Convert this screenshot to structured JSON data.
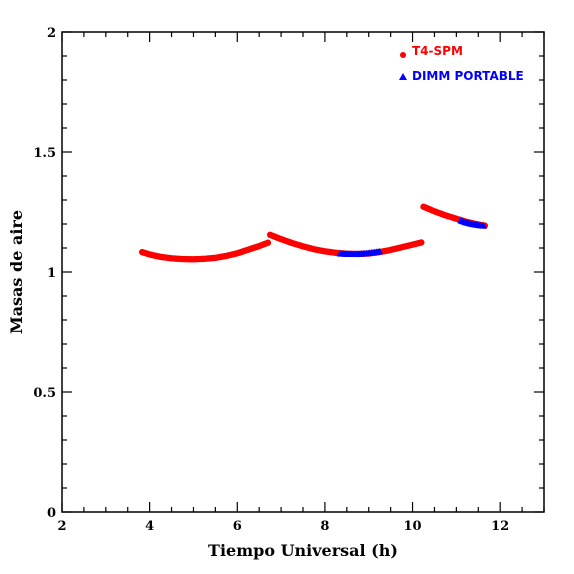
{
  "chart_data": {
    "type": "scatter",
    "xlabel": "Tiempo Universal (h)",
    "ylabel": "Masas de aire",
    "xlim": [
      2,
      13
    ],
    "ylim": [
      0,
      2
    ],
    "xticks": [
      2,
      4,
      6,
      8,
      10,
      12
    ],
    "xtick_labels": [
      "2",
      "4",
      "6",
      "8",
      "10",
      "12"
    ],
    "yticks": [
      0,
      0.5,
      1,
      1.5,
      2
    ],
    "ytick_labels": [
      "0",
      "0.5",
      "1",
      "1.5",
      "2"
    ],
    "grid": false,
    "legend_position": "top-right",
    "series": [
      {
        "name": "T4-SPM",
        "color": "#ff0000",
        "marker": "circle",
        "segments": [
          {
            "x": [
              3.83,
              4.0,
              4.25,
              4.5,
              4.75,
              5.0,
              5.25,
              5.5,
              5.75,
              6.0,
              6.25,
              6.5,
              6.7
            ],
            "y": [
              1.083,
              1.073,
              1.063,
              1.057,
              1.054,
              1.053,
              1.055,
              1.059,
              1.067,
              1.078,
              1.093,
              1.108,
              1.122
            ]
          },
          {
            "x": [
              6.75,
              7.0,
              7.25,
              7.5,
              7.75,
              8.0,
              8.25,
              8.5,
              8.75,
              9.0,
              9.25,
              9.5,
              9.75,
              10.0,
              10.2
            ],
            "y": [
              1.155,
              1.137,
              1.121,
              1.107,
              1.095,
              1.086,
              1.08,
              1.076,
              1.075,
              1.077,
              1.083,
              1.092,
              1.103,
              1.114,
              1.123
            ]
          },
          {
            "x": [
              10.25,
              10.5,
              10.75,
              11.0,
              11.25,
              11.5,
              11.65
            ],
            "y": [
              1.272,
              1.253,
              1.236,
              1.222,
              1.208,
              1.198,
              1.193
            ]
          }
        ]
      },
      {
        "name": "DIMM PORTABLE",
        "color": "#0000ff",
        "marker": "triangle",
        "segments": [
          {
            "x": [
              8.35,
              8.5,
              8.65,
              8.8,
              8.95,
              9.1,
              9.25
            ],
            "y": [
              1.077,
              1.076,
              1.075,
              1.076,
              1.078,
              1.082,
              1.086
            ]
          },
          {
            "x": [
              11.1,
              11.2,
              11.3,
              11.4,
              11.5,
              11.62
            ],
            "y": [
              1.215,
              1.208,
              1.203,
              1.199,
              1.196,
              1.193
            ]
          }
        ]
      }
    ]
  }
}
